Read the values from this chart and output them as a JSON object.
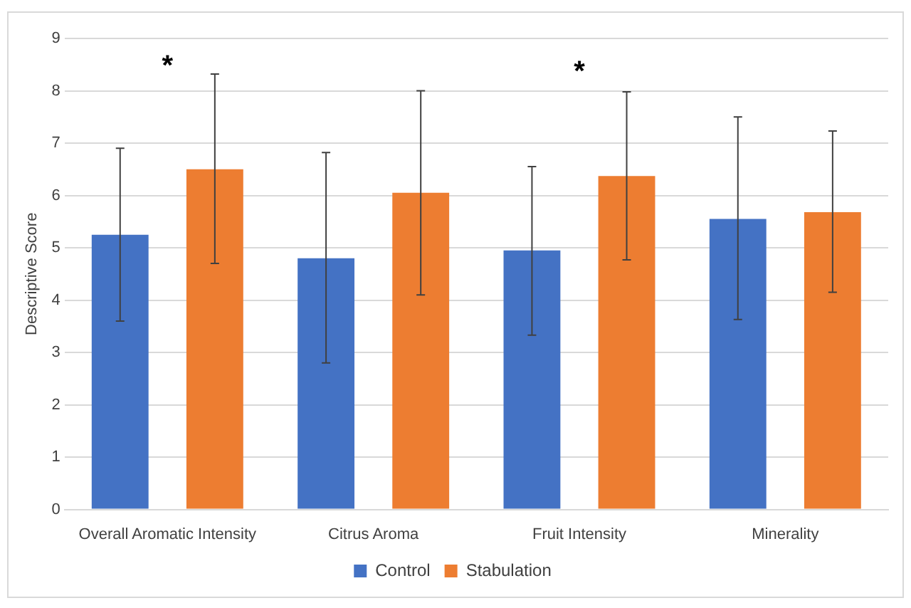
{
  "chart_data": {
    "type": "bar",
    "ylabel": "Descriptive Score",
    "categories": [
      "Overall Aromatic Intensity",
      "Citrus Aroma",
      "Fruit Intensity",
      "Minerality"
    ],
    "series": [
      {
        "name": "Control",
        "color": "#4472c4",
        "values": [
          5.25,
          4.8,
          4.95,
          5.55
        ],
        "errors": [
          [
            3.6,
            6.9
          ],
          [
            2.8,
            6.82
          ],
          [
            3.33,
            6.55
          ],
          [
            3.63,
            7.5
          ]
        ]
      },
      {
        "name": "Stabulation",
        "color": "#ed7d31",
        "values": [
          6.5,
          6.05,
          6.37,
          5.68
        ],
        "errors": [
          [
            4.7,
            8.32
          ],
          [
            4.1,
            8.0
          ],
          [
            4.77,
            7.98
          ],
          [
            4.15,
            7.23
          ]
        ]
      }
    ],
    "ylim": [
      0,
      9
    ],
    "yticks": [
      0,
      1,
      2,
      3,
      4,
      5,
      6,
      7,
      8,
      9
    ],
    "grid": "y",
    "legend": "bottom",
    "annotations": [
      "*",
      "*"
    ]
  }
}
